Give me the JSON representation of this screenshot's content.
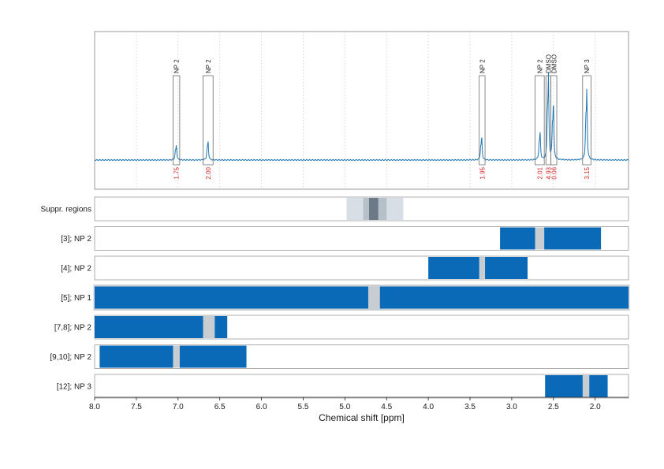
{
  "chart_data": {
    "type": "nmr-spectrum",
    "xlabel": "Chemical shift [ppm]",
    "xlim": [
      8.0,
      1.6
    ],
    "x_reversed": true,
    "x_ticks": [
      {
        "value": 8.0,
        "label": "8.0"
      },
      {
        "value": 7.5,
        "label": "7.5"
      },
      {
        "value": 7.0,
        "label": "7.0"
      },
      {
        "value": 6.5,
        "label": "6.5"
      },
      {
        "value": 6.0,
        "label": "6.0"
      },
      {
        "value": 5.5,
        "label": "5.5"
      },
      {
        "value": 5.0,
        "label": "5.0"
      },
      {
        "value": 4.5,
        "label": "4.5"
      },
      {
        "value": 4.0,
        "label": "4.0"
      },
      {
        "value": 3.5,
        "label": "3.5"
      },
      {
        "value": 3.0,
        "label": "3.0"
      },
      {
        "value": 2.5,
        "label": "2.5"
      },
      {
        "value": 2.0,
        "label": "2.0"
      }
    ],
    "grid": "vertical dotted",
    "colors": {
      "spectrum": "#1f77b4",
      "bar": "#0a6ab8",
      "gap": "#c8cdd2",
      "integral_text": "#d62728",
      "suppr_outer": "#d7dee5",
      "suppr_mid": "#b6c0c9",
      "suppr_inner": "#6b7a86",
      "frame": "#9a9a9a"
    },
    "peaks": [
      {
        "label": "NP 2",
        "from": 7.06,
        "to": 6.98,
        "shift": 7.02,
        "height": 0.14,
        "integral": "1.75"
      },
      {
        "label": "NP 2",
        "from": 6.7,
        "to": 6.58,
        "shift": 6.64,
        "height": 0.18,
        "integral": "2.00"
      },
      {
        "label": "NP 2",
        "from": 3.39,
        "to": 3.32,
        "shift": 3.36,
        "height": 0.22,
        "integral": "1.95"
      },
      {
        "label": "NP 2",
        "from": 2.72,
        "to": 2.61,
        "shift": 2.66,
        "height": 0.26,
        "integral": "2.01"
      },
      {
        "label": "DMSO",
        "from": 2.59,
        "to": 2.53,
        "shift": 2.56,
        "height": 0.8,
        "integral": "4.93"
      },
      {
        "label": "DMSO",
        "from": 2.53,
        "to": 2.46,
        "shift": 2.5,
        "height": 0.55,
        "integral": "0.06"
      },
      {
        "label": "NP 3",
        "from": 2.15,
        "to": 2.05,
        "shift": 2.1,
        "height": 0.66,
        "integral": "3.15"
      }
    ],
    "suppressed_regions": {
      "label": "Suppr. regions",
      "outer": [
        4.98,
        4.3
      ],
      "mid": [
        4.78,
        4.5
      ],
      "inner": [
        4.71,
        4.6
      ]
    },
    "rows": [
      {
        "label": "[3]; NP 2",
        "from": 3.14,
        "to": 1.93,
        "gap": [
          2.72,
          2.61
        ]
      },
      {
        "label": "[4]; NP 2",
        "from": 4.0,
        "to": 2.81,
        "gap": [
          3.39,
          3.32
        ]
      },
      {
        "label": "[5]; NP 1",
        "from": 8.0,
        "to": 1.6,
        "gap": [
          4.72,
          4.58
        ],
        "highlight": true
      },
      {
        "label": "[7,8]; NP 2",
        "from": 8.0,
        "to": 6.41,
        "gap": [
          6.7,
          6.56
        ]
      },
      {
        "label": "[9,10]; NP 2",
        "from": 7.94,
        "to": 6.18,
        "gap": [
          7.06,
          6.98
        ]
      },
      {
        "label": "[12]; NP 3",
        "from": 2.6,
        "to": 1.85,
        "gap": [
          2.15,
          2.07
        ]
      }
    ]
  }
}
